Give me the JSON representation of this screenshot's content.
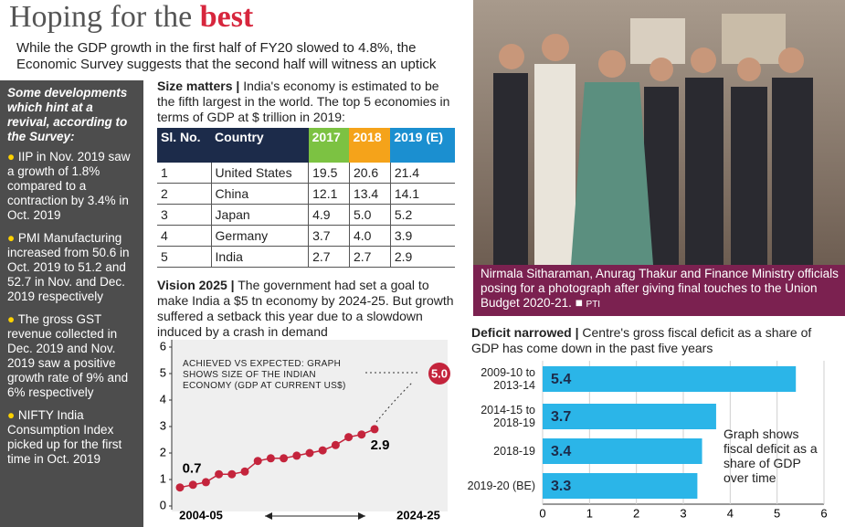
{
  "header": {
    "title": "Hoping for the",
    "title_emphasis": "best",
    "subtitle": "While the GDP growth in the first half of FY20 slowed to 4.8%, the Economic Survey suggests that the second half will witness an uptick"
  },
  "sidebar": {
    "heading": "Some developments which hint at a revival, according to the Survey:",
    "items": [
      "IIP in Nov. 2019 saw a growth of 1.8% compared to a contraction by 3.4% in Oct. 2019",
      "PMI Manufacturing increased from 50.6 in Oct. 2019 to 51.2 and 52.7 in Nov. and Dec. 2019 respectively",
      "The gross GST revenue collected in Dec. 2019 and Nov. 2019 saw a positive growth rate of 9% and 6% respectively",
      "NIFTY India Consumption Index picked up for the first time in Oct. 2019"
    ]
  },
  "table": {
    "title": "Size matters |",
    "description": "India's economy is estimated to be the fifth largest in the world. The top 5 economies in terms of GDP at $ trillion in 2019:",
    "columns": [
      "Sl. No.",
      "Country",
      "2017",
      "2018",
      "2019 (E)"
    ],
    "rows": [
      [
        "1",
        "United States",
        "19.5",
        "20.6",
        "21.4"
      ],
      [
        "2",
        "China",
        "12.1",
        "13.4",
        "14.1"
      ],
      [
        "3",
        "Japan",
        "4.9",
        "5.0",
        "5.2"
      ],
      [
        "4",
        "Germany",
        "3.7",
        "4.0",
        "3.9"
      ],
      [
        "5",
        "India",
        "2.7",
        "2.7",
        "2.9"
      ]
    ]
  },
  "photo": {
    "caption": "Nirmala Sitharaman, Anurag Thakur and Finance Ministry officials posing for a photograph after giving final touches to the Union Budget 2020-21.",
    "credit": "PTI"
  },
  "chart_data": [
    {
      "type": "line",
      "title": "Vision 2025 |",
      "subtitle": "The government had set a goal to make India a $5 tn economy by 2024-25. But growth suffered a setback this year due to a slowdown induced by a crash in demand",
      "annotation": "ACHIEVED VS EXPECTED: GRAPH SHOWS SIZE OF THE INDIAN ECONOMY (GDP AT CURRENT US$)",
      "categories": [
        "2004-05",
        null,
        null,
        null,
        null,
        null,
        null,
        null,
        null,
        null,
        null,
        null,
        null,
        null,
        null,
        null,
        null,
        null,
        null,
        null,
        "2024-25"
      ],
      "values": [
        0.7,
        0.8,
        0.9,
        1.2,
        1.2,
        1.3,
        1.7,
        1.8,
        1.8,
        1.9,
        2.0,
        2.1,
        2.3,
        2.6,
        2.7,
        2.9,
        null,
        null,
        null,
        null,
        5.0
      ],
      "value_labels": [
        "0.7",
        null,
        null,
        null,
        null,
        null,
        null,
        null,
        null,
        null,
        null,
        null,
        null,
        null,
        null,
        "2.9",
        null,
        null,
        null,
        null,
        "5.0"
      ],
      "color": "#c4243c",
      "ylim": [
        0,
        6
      ],
      "yticks": [
        0,
        1,
        2,
        3,
        4,
        5,
        6
      ]
    },
    {
      "type": "bar",
      "orientation": "horizontal",
      "title": "Deficit narrowed |",
      "subtitle": "Centre's gross fiscal deficit as a share of GDP has come down in the past five years",
      "annotation": "Graph shows fiscal deficit as a share of GDP over time",
      "categories": [
        "2009-10 to 2013-14",
        "2014-15 to 2018-19",
        "2018-19",
        "2019-20 (BE)"
      ],
      "values": [
        5.4,
        3.7,
        3.4,
        3.3
      ],
      "color": "#2bb5e8",
      "xlim": [
        0,
        6
      ],
      "xticks": [
        0,
        1,
        2,
        3,
        4,
        5,
        6
      ],
      "grid": true
    }
  ]
}
